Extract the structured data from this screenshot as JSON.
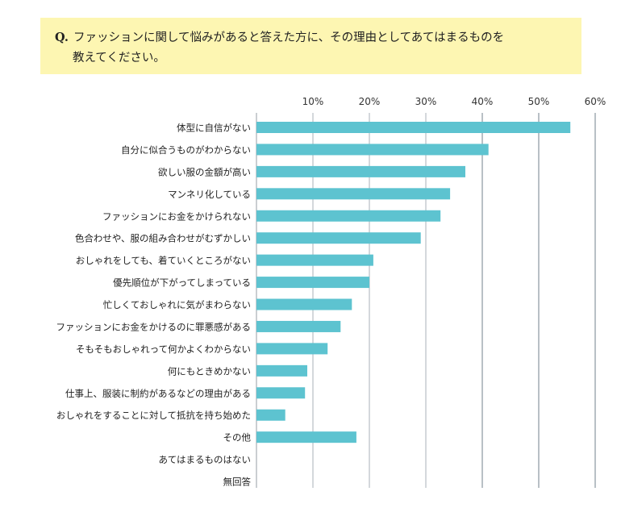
{
  "question": {
    "prefix": "Q.",
    "line1": "ファッションに関して悩みがあると答えた方に、その理由としてあてはまるものを",
    "line2": "教えてください。"
  },
  "colors": {
    "bar": "#5dc3d0",
    "grid": "#b8bec4",
    "box": "#fdf6b2"
  },
  "chart_data": {
    "type": "bar",
    "orientation": "horizontal",
    "title": "",
    "xlabel": "",
    "ylabel": "",
    "xlim": [
      0,
      60
    ],
    "xticks": [
      10,
      20,
      30,
      40,
      50,
      60
    ],
    "xtick_labels": [
      "10%",
      "20%",
      "30%",
      "40%",
      "50%",
      "60%"
    ],
    "grid": true,
    "categories": [
      "体型に自信がない",
      "自分に似合うものがわからない",
      "欲しい服の金額が高い",
      "マンネリ化している",
      "ファッションにお金をかけられない",
      "色合わせや、服の組み合わせがむずかしい",
      "おしゃれをしても、着ていくところがない",
      "優先順位が下がってしまっている",
      "忙しくておしゃれに気がまわらない",
      "ファッションにお金をかけるのに罪悪感がある",
      "そもそもおしゃれって何かよくわからない",
      "何にもときめかない",
      "仕事上、服装に制約があるなどの理由がある",
      "おしゃれをすることに対して抵抗を持ち始めた",
      "その他",
      "あてはまるものはない",
      "無回答"
    ],
    "values": [
      55.6,
      41.1,
      37.0,
      34.3,
      32.6,
      29.1,
      20.7,
      20.0,
      16.9,
      14.9,
      12.6,
      9.0,
      8.6,
      5.1,
      17.7,
      0,
      0
    ]
  }
}
